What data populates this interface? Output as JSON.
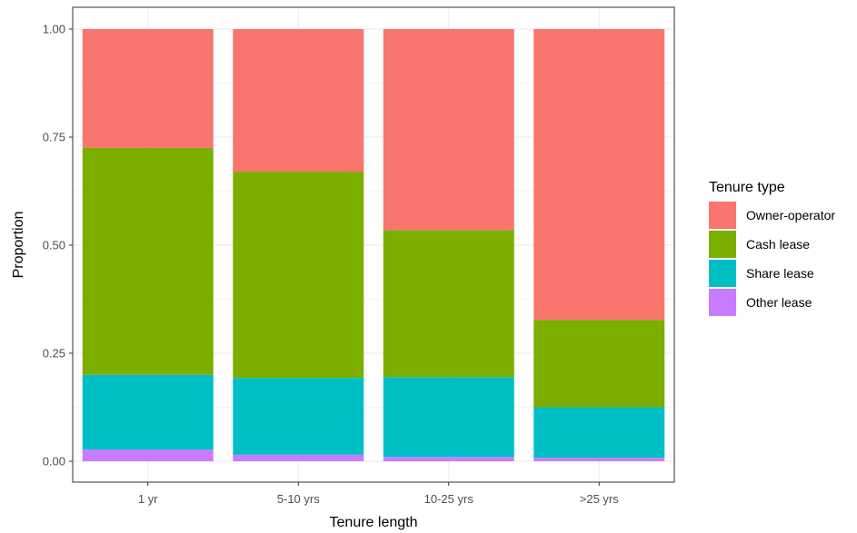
{
  "chart_data": {
    "type": "bar",
    "stacked": true,
    "categories": [
      "1 yr",
      "5-10 yrs",
      "10-25 yrs",
      ">25 yrs"
    ],
    "series": [
      {
        "name": "Owner-operator",
        "color": "#F8766D",
        "values": [
          0.275,
          0.33,
          0.465,
          0.673
        ]
      },
      {
        "name": "Cash lease",
        "color": "#7CAE00",
        "values": [
          0.525,
          0.477,
          0.34,
          0.202
        ]
      },
      {
        "name": "Share lease",
        "color": "#00BFC4",
        "values": [
          0.173,
          0.178,
          0.185,
          0.117
        ]
      },
      {
        "name": "Other lease",
        "color": "#C77CFF",
        "values": [
          0.027,
          0.015,
          0.01,
          0.008
        ]
      }
    ],
    "stack_order_bottom_to_top": [
      "Other lease",
      "Share lease",
      "Cash lease",
      "Owner-operator"
    ],
    "xlabel": "Tenure length",
    "ylabel": "Proportion",
    "ylim": [
      0,
      1
    ],
    "yticks": [
      0.0,
      0.25,
      0.5,
      0.75,
      1.0
    ],
    "ytick_labels": [
      "0.00",
      "0.25",
      "0.50",
      "0.75",
      "1.00"
    ],
    "legend": {
      "title": "Tenure type",
      "position": "right"
    },
    "grid": true
  }
}
